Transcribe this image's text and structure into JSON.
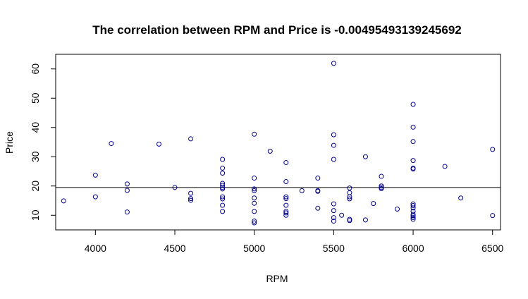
{
  "chart_data": {
    "type": "scatter",
    "title": "The correlation between RPM  and  Price  is  -0.00495493139245692",
    "xlabel": "RPM",
    "ylabel": "Price",
    "xlim": [
      3750,
      6550
    ],
    "ylim": [
      5,
      65
    ],
    "xticks": [
      "4000",
      "4500",
      "5000",
      "5500",
      "6000",
      "6500"
    ],
    "yticks": [
      "10",
      "20",
      "30",
      "40",
      "50",
      "60"
    ],
    "grid": false,
    "legend": "none",
    "point_color": "#00008b",
    "line_color": "#000000",
    "regression_line": {
      "y": 19.5
    },
    "points": [
      [
        3800,
        14.9
      ],
      [
        4000,
        23.7
      ],
      [
        4000,
        16.3
      ],
      [
        4100,
        34.5
      ],
      [
        4200,
        20.7
      ],
      [
        4200,
        18.5
      ],
      [
        4200,
        11.1
      ],
      [
        4400,
        34.3
      ],
      [
        4500,
        19.5
      ],
      [
        4600,
        36.1
      ],
      [
        4600,
        17.5
      ],
      [
        4600,
        15.7
      ],
      [
        4600,
        15.1
      ],
      [
        4800,
        29.1
      ],
      [
        4800,
        26.1
      ],
      [
        4800,
        24.4
      ],
      [
        4800,
        20.9
      ],
      [
        4800,
        20.2
      ],
      [
        4800,
        19.5
      ],
      [
        4800,
        19.0
      ],
      [
        4800,
        16.3
      ],
      [
        4800,
        15.6
      ],
      [
        4800,
        13.4
      ],
      [
        4800,
        11.3
      ],
      [
        5000,
        37.7
      ],
      [
        5000,
        22.7
      ],
      [
        5000,
        19.0
      ],
      [
        5000,
        18.4
      ],
      [
        5000,
        15.9
      ],
      [
        5000,
        14.1
      ],
      [
        5000,
        11.3
      ],
      [
        5000,
        8.0
      ],
      [
        5000,
        7.4
      ],
      [
        5100,
        31.9
      ],
      [
        5200,
        28.0
      ],
      [
        5200,
        21.5
      ],
      [
        5200,
        16.3
      ],
      [
        5200,
        15.7
      ],
      [
        5200,
        13.4
      ],
      [
        5200,
        11.3
      ],
      [
        5200,
        10.8
      ],
      [
        5200,
        10.0
      ],
      [
        5300,
        18.4
      ],
      [
        5400,
        22.7
      ],
      [
        5400,
        18.4
      ],
      [
        5400,
        18.2
      ],
      [
        5400,
        12.4
      ],
      [
        5500,
        61.9
      ],
      [
        5500,
        37.5
      ],
      [
        5500,
        33.9
      ],
      [
        5500,
        29.1
      ],
      [
        5500,
        13.9
      ],
      [
        5500,
        11.6
      ],
      [
        5500,
        9.2
      ],
      [
        5500,
        8.0
      ],
      [
        5550,
        10.0
      ],
      [
        5600,
        19.3
      ],
      [
        5600,
        17.7
      ],
      [
        5600,
        16.3
      ],
      [
        5600,
        15.6
      ],
      [
        5600,
        8.6
      ],
      [
        5600,
        8.2
      ],
      [
        5700,
        30.0
      ],
      [
        5700,
        8.4
      ],
      [
        5750,
        14.0
      ],
      [
        5800,
        23.3
      ],
      [
        5800,
        20.0
      ],
      [
        5800,
        19.5
      ],
      [
        5800,
        19.1
      ],
      [
        5900,
        12.1
      ],
      [
        6000,
        47.9
      ],
      [
        6000,
        40.1
      ],
      [
        6000,
        35.2
      ],
      [
        6000,
        28.7
      ],
      [
        6000,
        26.1
      ],
      [
        6000,
        25.8
      ],
      [
        6000,
        13.9
      ],
      [
        6000,
        13.3
      ],
      [
        6000,
        12.5
      ],
      [
        6000,
        11.4
      ],
      [
        6000,
        10.3
      ],
      [
        6000,
        9.8
      ],
      [
        6000,
        9.2
      ],
      [
        6000,
        8.6
      ],
      [
        6200,
        26.7
      ],
      [
        6300,
        15.9
      ],
      [
        6500,
        32.5
      ],
      [
        6500,
        9.9
      ]
    ]
  }
}
